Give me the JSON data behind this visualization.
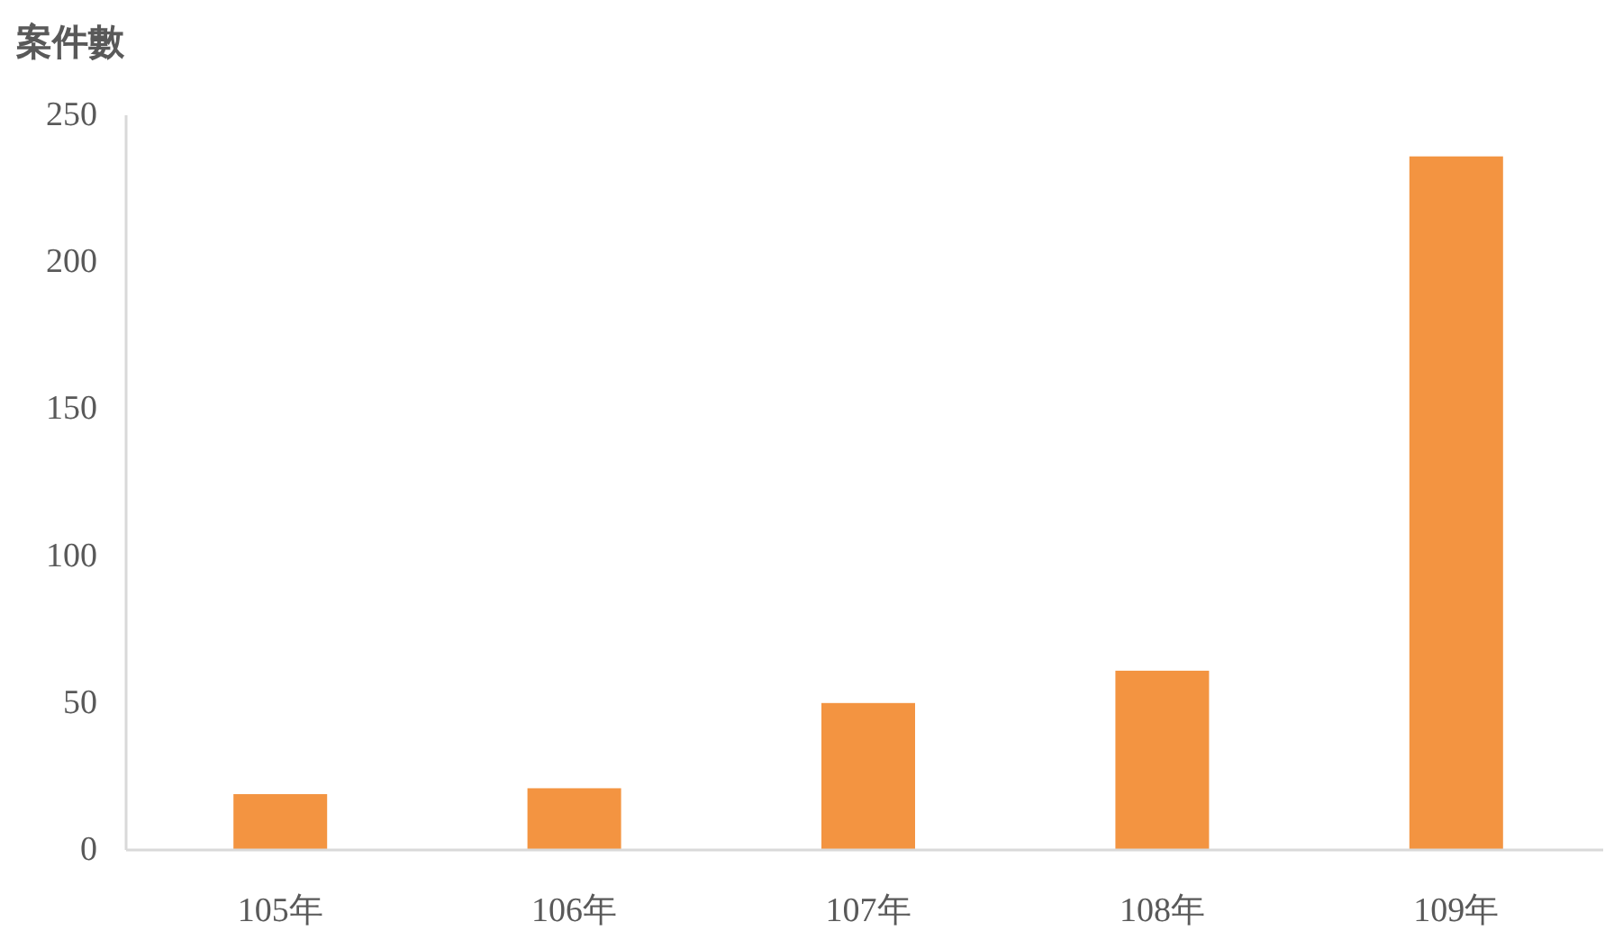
{
  "chart_data": {
    "type": "bar",
    "ylabel": "案件數",
    "categories": [
      "105年",
      "106年",
      "107年",
      "108年",
      "109年"
    ],
    "values": [
      19,
      21,
      50,
      61,
      236
    ],
    "color": "#f39441",
    "ylim": [
      0,
      250
    ],
    "yticks": [
      0,
      50,
      100,
      150,
      200,
      250
    ],
    "grid": false
  }
}
